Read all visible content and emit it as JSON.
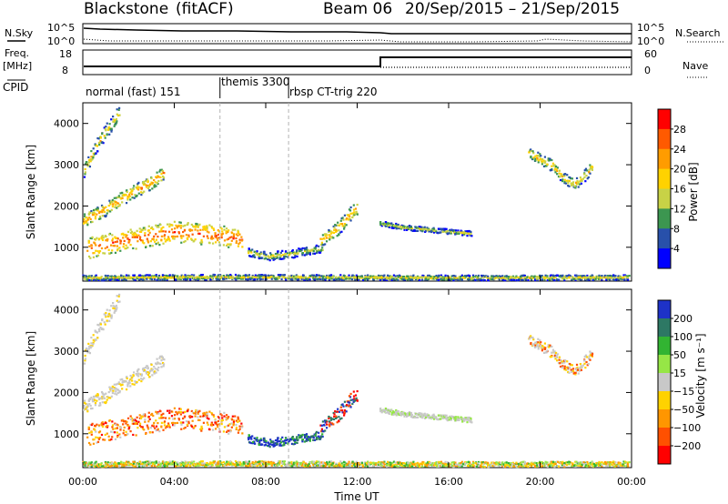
{
  "header": {
    "station": "Blackstone",
    "algo": "(fitACF)",
    "beam": "Beam 06",
    "date_range": "20/Sep/2015 – 21/Sep/2015"
  },
  "top_panels": {
    "nsky_label": "N.Sky",
    "nsearch_label": "N.Search",
    "nsky_ticks": [
      "10^5",
      "10^0"
    ],
    "freq_label_1": "Freq.",
    "freq_label_2": "[MHz]",
    "nave_label": "Nave",
    "freq_ticks": [
      "18",
      "8"
    ],
    "nave_ticks": [
      "60",
      "0"
    ],
    "cpid_label": "CPID",
    "cpid_modes": [
      {
        "label": "normal (fast) 151",
        "start_hour": 0
      },
      {
        "label": "themis 3300",
        "start_hour": 6
      },
      {
        "label": "rbsp CT-trig 220",
        "start_hour": 9
      }
    ]
  },
  "chart_data": [
    {
      "type": "heatmap",
      "panel": "power",
      "xlabel": "",
      "ylabel": "Slant Range [km]",
      "xlim": [
        0,
        24
      ],
      "ylim": [
        180,
        4500
      ],
      "yticks": [
        1000,
        2000,
        3000,
        4000
      ],
      "colorbar": {
        "label": "Power [dB]",
        "ticks": [
          "28",
          "24",
          "20",
          "16",
          "12",
          "8",
          "4"
        ],
        "colors": [
          "#ff0000",
          "#ff5a00",
          "#ff9c00",
          "#ffd200",
          "#c8d246",
          "#3c9650",
          "#2850aa",
          "#0000ff"
        ]
      }
    },
    {
      "type": "heatmap",
      "panel": "velocity",
      "xlabel": "Time UT",
      "ylabel": "Slant Range [km]",
      "xlim": [
        0,
        24
      ],
      "ylim": [
        180,
        4500
      ],
      "yticks": [
        1000,
        2000,
        3000,
        4000
      ],
      "xticks": [
        "00:00",
        "04:00",
        "08:00",
        "12:00",
        "16:00",
        "20:00",
        "00:00"
      ],
      "colorbar": {
        "label": "Velocity [m s⁻¹]",
        "ticks": [
          "200",
          "100",
          "50",
          "15",
          "−15",
          "−50",
          "−100",
          "−200"
        ],
        "colors": [
          "#1e32c8",
          "#2d7864",
          "#32b432",
          "#96e646",
          "#c8c8c8",
          "#ffd200",
          "#ff9600",
          "#ff5000",
          "#ff0000"
        ]
      }
    }
  ],
  "colors": {
    "axis": "#000000",
    "divider": "#b4b4b4"
  }
}
